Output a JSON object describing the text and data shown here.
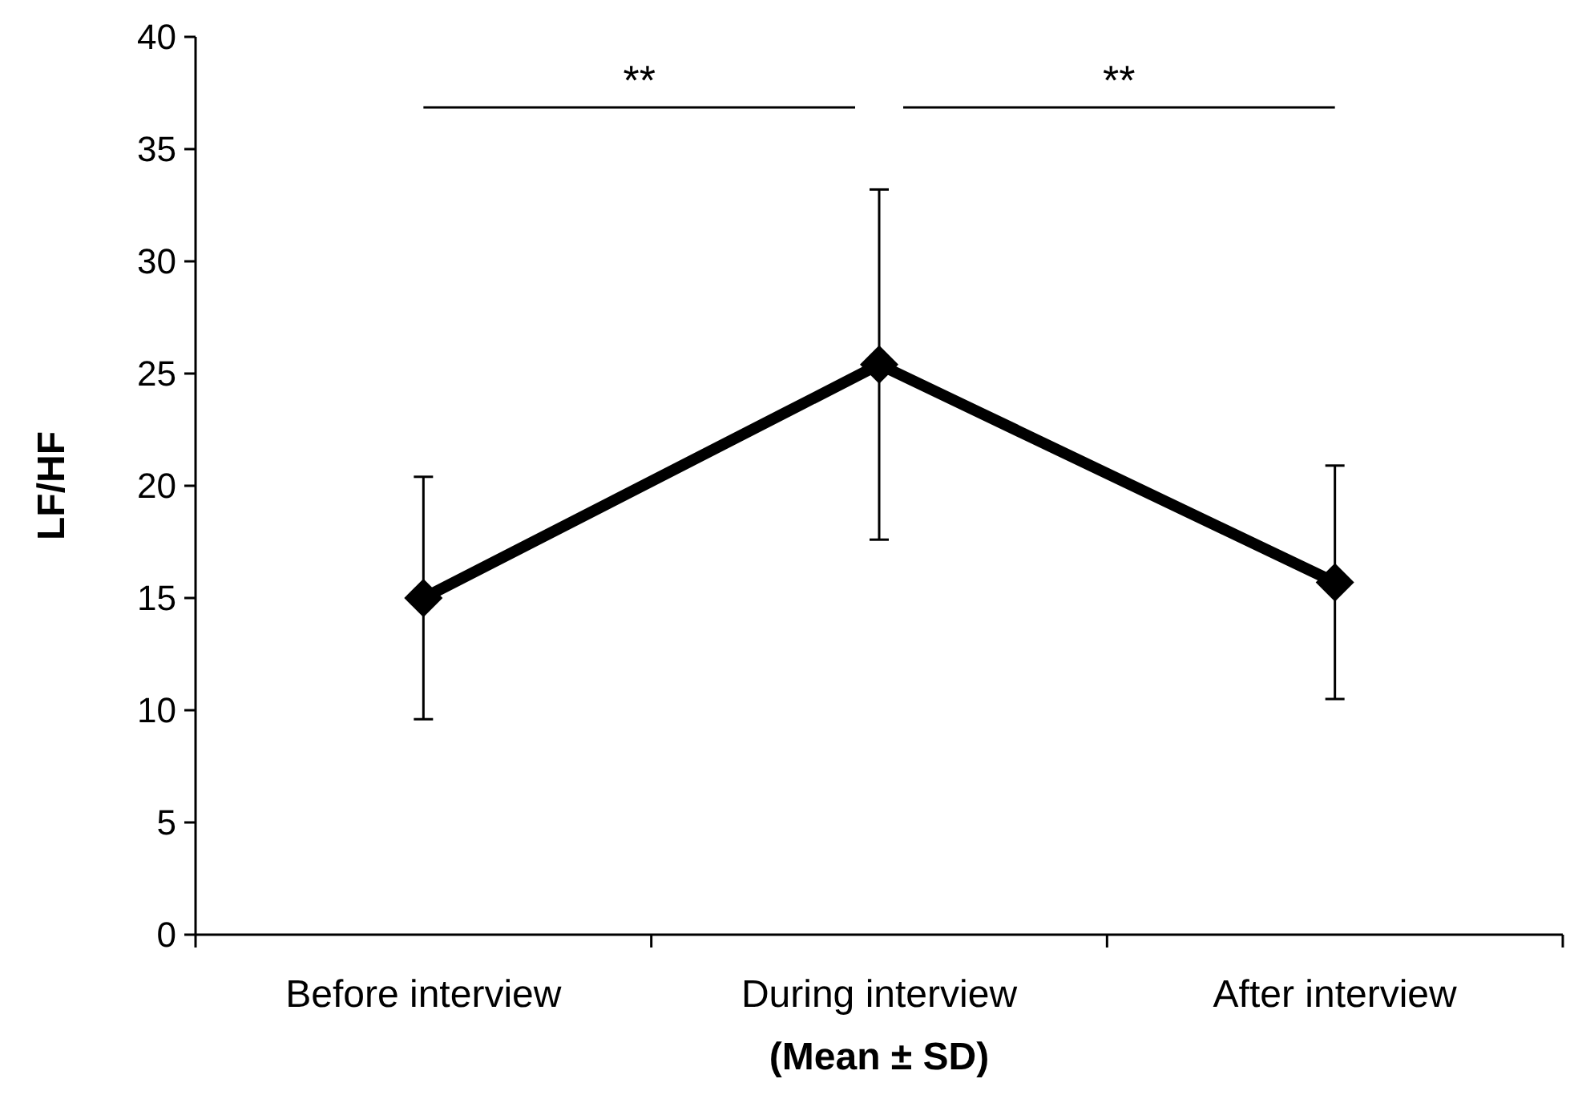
{
  "chart_data": {
    "type": "line",
    "ylabel": "LF/HF",
    "xlabel": "(Mean ± SD)",
    "categories": [
      "Before interview",
      "During interview",
      "After interview"
    ],
    "series": [
      {
        "color": "#000000",
        "values": [
          15.0,
          25.4,
          15.7
        ],
        "errors": [
          5.4,
          7.8,
          5.2
        ]
      }
    ],
    "ylim": [
      0,
      40
    ],
    "yticks": [
      0,
      5,
      10,
      15,
      20,
      25,
      30,
      35,
      40
    ],
    "marker": "diamond",
    "line_style": "solid",
    "grid": false,
    "annotations": [
      "**",
      "**"
    ]
  }
}
